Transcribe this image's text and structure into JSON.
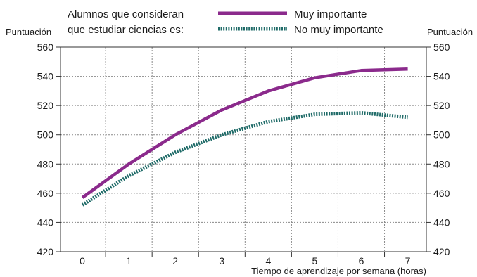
{
  "legend": {
    "caption_line1": "Alumnos que consideran",
    "caption_line2": "que estudiar ciencias es:"
  },
  "chart_data": {
    "type": "line",
    "title": "",
    "xlabel": "Tiempo de aprendizaje por semana (horas)",
    "ylabel_left": "Puntuación",
    "ylabel_right": "Puntuación",
    "x": [
      0,
      1,
      2,
      3,
      4,
      5,
      6,
      7
    ],
    "x_tick_labels": [
      "0",
      "1",
      "2",
      "3",
      "4",
      "5",
      "6",
      "7"
    ],
    "ylim": [
      420,
      560
    ],
    "y_ticks": [
      420,
      440,
      460,
      480,
      500,
      520,
      540,
      560
    ],
    "grid": true,
    "legend_position": "top",
    "series": [
      {
        "name": "Muy importante",
        "color": "#8b2a8c",
        "style": "solid",
        "values": [
          457,
          480,
          500,
          517,
          530,
          539,
          544,
          545
        ]
      },
      {
        "name": "No muy importante",
        "color": "#1f6b68",
        "style": "dotted",
        "values": [
          452,
          472,
          488,
          500,
          509,
          514,
          515,
          512
        ]
      }
    ]
  }
}
